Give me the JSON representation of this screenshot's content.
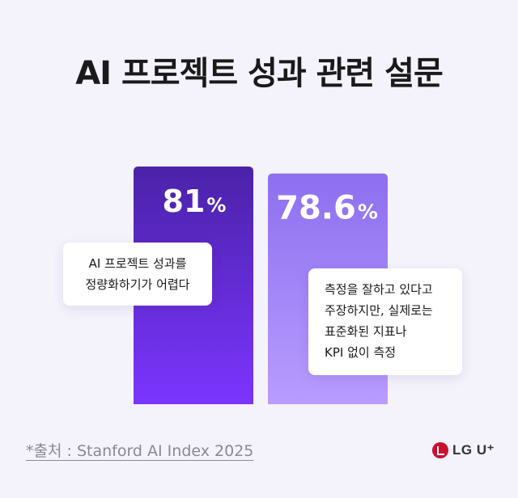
{
  "title": "AI 프로젝트 성과 관련 설문",
  "chart_data": {
    "type": "bar",
    "categories": [
      "AI 프로젝트 성과를 정량화하기가 어렵다",
      "측정을 잘하고 있다고 주장하지만, 실제로는 표준화된 지표나 KPI 없이 측정"
    ],
    "values": [
      81,
      78.6
    ],
    "value_labels": [
      "81",
      "78.6"
    ],
    "unit": "%",
    "ylim": [
      0,
      100
    ],
    "colors": {
      "bar1_top": "#4b22a8",
      "bar1_bottom": "#7b35ff",
      "bar2_top": "#8d6ff0",
      "bar2_bottom": "#b89cff"
    },
    "callouts": [
      [
        "AI 프로젝트 성과를",
        "정량화하기가 어렵다"
      ],
      [
        "측정을 잘하고 있다고",
        "주장하지만, 실제로는",
        "표준화된 지표나",
        "KPI 없이 측정"
      ]
    ]
  },
  "source": "*출처 : Stanford AI Index 2025",
  "logo": {
    "text": "LG U⁺",
    "icon": "lg-face-icon",
    "brand_color": "#c8102e"
  }
}
